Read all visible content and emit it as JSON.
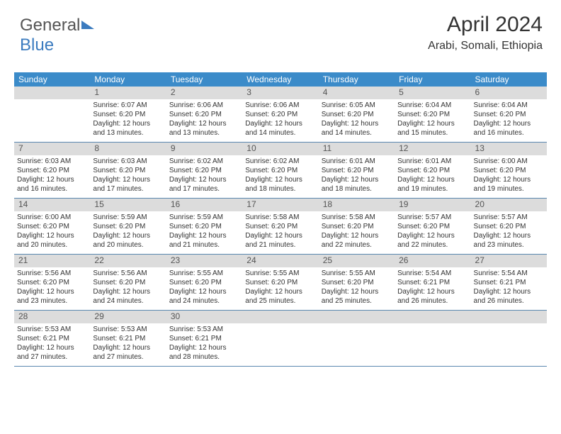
{
  "logo": {
    "text1": "General",
    "text2": "Blue"
  },
  "header": {
    "month": "April 2024",
    "location": "Arabi, Somali, Ethiopia"
  },
  "style": {
    "header_bg": "#3b8bc9",
    "header_fg": "#ffffff",
    "daynum_bg": "#dcdcdc",
    "border_color": "#5a88b0",
    "text_color": "#333333",
    "body_font_size": 10,
    "daynum_font_size": 12,
    "dow_font_size": 12,
    "title_font_size": 30,
    "loc_font_size": 16
  },
  "dow": [
    "Sunday",
    "Monday",
    "Tuesday",
    "Wednesday",
    "Thursday",
    "Friday",
    "Saturday"
  ],
  "weeks": [
    [
      null,
      {
        "n": "1",
        "sr": "Sunrise: 6:07 AM",
        "ss": "Sunset: 6:20 PM",
        "d1": "Daylight: 12 hours",
        "d2": "and 13 minutes."
      },
      {
        "n": "2",
        "sr": "Sunrise: 6:06 AM",
        "ss": "Sunset: 6:20 PM",
        "d1": "Daylight: 12 hours",
        "d2": "and 13 minutes."
      },
      {
        "n": "3",
        "sr": "Sunrise: 6:06 AM",
        "ss": "Sunset: 6:20 PM",
        "d1": "Daylight: 12 hours",
        "d2": "and 14 minutes."
      },
      {
        "n": "4",
        "sr": "Sunrise: 6:05 AM",
        "ss": "Sunset: 6:20 PM",
        "d1": "Daylight: 12 hours",
        "d2": "and 14 minutes."
      },
      {
        "n": "5",
        "sr": "Sunrise: 6:04 AM",
        "ss": "Sunset: 6:20 PM",
        "d1": "Daylight: 12 hours",
        "d2": "and 15 minutes."
      },
      {
        "n": "6",
        "sr": "Sunrise: 6:04 AM",
        "ss": "Sunset: 6:20 PM",
        "d1": "Daylight: 12 hours",
        "d2": "and 16 minutes."
      }
    ],
    [
      {
        "n": "7",
        "sr": "Sunrise: 6:03 AM",
        "ss": "Sunset: 6:20 PM",
        "d1": "Daylight: 12 hours",
        "d2": "and 16 minutes."
      },
      {
        "n": "8",
        "sr": "Sunrise: 6:03 AM",
        "ss": "Sunset: 6:20 PM",
        "d1": "Daylight: 12 hours",
        "d2": "and 17 minutes."
      },
      {
        "n": "9",
        "sr": "Sunrise: 6:02 AM",
        "ss": "Sunset: 6:20 PM",
        "d1": "Daylight: 12 hours",
        "d2": "and 17 minutes."
      },
      {
        "n": "10",
        "sr": "Sunrise: 6:02 AM",
        "ss": "Sunset: 6:20 PM",
        "d1": "Daylight: 12 hours",
        "d2": "and 18 minutes."
      },
      {
        "n": "11",
        "sr": "Sunrise: 6:01 AM",
        "ss": "Sunset: 6:20 PM",
        "d1": "Daylight: 12 hours",
        "d2": "and 18 minutes."
      },
      {
        "n": "12",
        "sr": "Sunrise: 6:01 AM",
        "ss": "Sunset: 6:20 PM",
        "d1": "Daylight: 12 hours",
        "d2": "and 19 minutes."
      },
      {
        "n": "13",
        "sr": "Sunrise: 6:00 AM",
        "ss": "Sunset: 6:20 PM",
        "d1": "Daylight: 12 hours",
        "d2": "and 19 minutes."
      }
    ],
    [
      {
        "n": "14",
        "sr": "Sunrise: 6:00 AM",
        "ss": "Sunset: 6:20 PM",
        "d1": "Daylight: 12 hours",
        "d2": "and 20 minutes."
      },
      {
        "n": "15",
        "sr": "Sunrise: 5:59 AM",
        "ss": "Sunset: 6:20 PM",
        "d1": "Daylight: 12 hours",
        "d2": "and 20 minutes."
      },
      {
        "n": "16",
        "sr": "Sunrise: 5:59 AM",
        "ss": "Sunset: 6:20 PM",
        "d1": "Daylight: 12 hours",
        "d2": "and 21 minutes."
      },
      {
        "n": "17",
        "sr": "Sunrise: 5:58 AM",
        "ss": "Sunset: 6:20 PM",
        "d1": "Daylight: 12 hours",
        "d2": "and 21 minutes."
      },
      {
        "n": "18",
        "sr": "Sunrise: 5:58 AM",
        "ss": "Sunset: 6:20 PM",
        "d1": "Daylight: 12 hours",
        "d2": "and 22 minutes."
      },
      {
        "n": "19",
        "sr": "Sunrise: 5:57 AM",
        "ss": "Sunset: 6:20 PM",
        "d1": "Daylight: 12 hours",
        "d2": "and 22 minutes."
      },
      {
        "n": "20",
        "sr": "Sunrise: 5:57 AM",
        "ss": "Sunset: 6:20 PM",
        "d1": "Daylight: 12 hours",
        "d2": "and 23 minutes."
      }
    ],
    [
      {
        "n": "21",
        "sr": "Sunrise: 5:56 AM",
        "ss": "Sunset: 6:20 PM",
        "d1": "Daylight: 12 hours",
        "d2": "and 23 minutes."
      },
      {
        "n": "22",
        "sr": "Sunrise: 5:56 AM",
        "ss": "Sunset: 6:20 PM",
        "d1": "Daylight: 12 hours",
        "d2": "and 24 minutes."
      },
      {
        "n": "23",
        "sr": "Sunrise: 5:55 AM",
        "ss": "Sunset: 6:20 PM",
        "d1": "Daylight: 12 hours",
        "d2": "and 24 minutes."
      },
      {
        "n": "24",
        "sr": "Sunrise: 5:55 AM",
        "ss": "Sunset: 6:20 PM",
        "d1": "Daylight: 12 hours",
        "d2": "and 25 minutes."
      },
      {
        "n": "25",
        "sr": "Sunrise: 5:55 AM",
        "ss": "Sunset: 6:20 PM",
        "d1": "Daylight: 12 hours",
        "d2": "and 25 minutes."
      },
      {
        "n": "26",
        "sr": "Sunrise: 5:54 AM",
        "ss": "Sunset: 6:21 PM",
        "d1": "Daylight: 12 hours",
        "d2": "and 26 minutes."
      },
      {
        "n": "27",
        "sr": "Sunrise: 5:54 AM",
        "ss": "Sunset: 6:21 PM",
        "d1": "Daylight: 12 hours",
        "d2": "and 26 minutes."
      }
    ],
    [
      {
        "n": "28",
        "sr": "Sunrise: 5:53 AM",
        "ss": "Sunset: 6:21 PM",
        "d1": "Daylight: 12 hours",
        "d2": "and 27 minutes."
      },
      {
        "n": "29",
        "sr": "Sunrise: 5:53 AM",
        "ss": "Sunset: 6:21 PM",
        "d1": "Daylight: 12 hours",
        "d2": "and 27 minutes."
      },
      {
        "n": "30",
        "sr": "Sunrise: 5:53 AM",
        "ss": "Sunset: 6:21 PM",
        "d1": "Daylight: 12 hours",
        "d2": "and 28 minutes."
      },
      null,
      null,
      null,
      null
    ]
  ]
}
